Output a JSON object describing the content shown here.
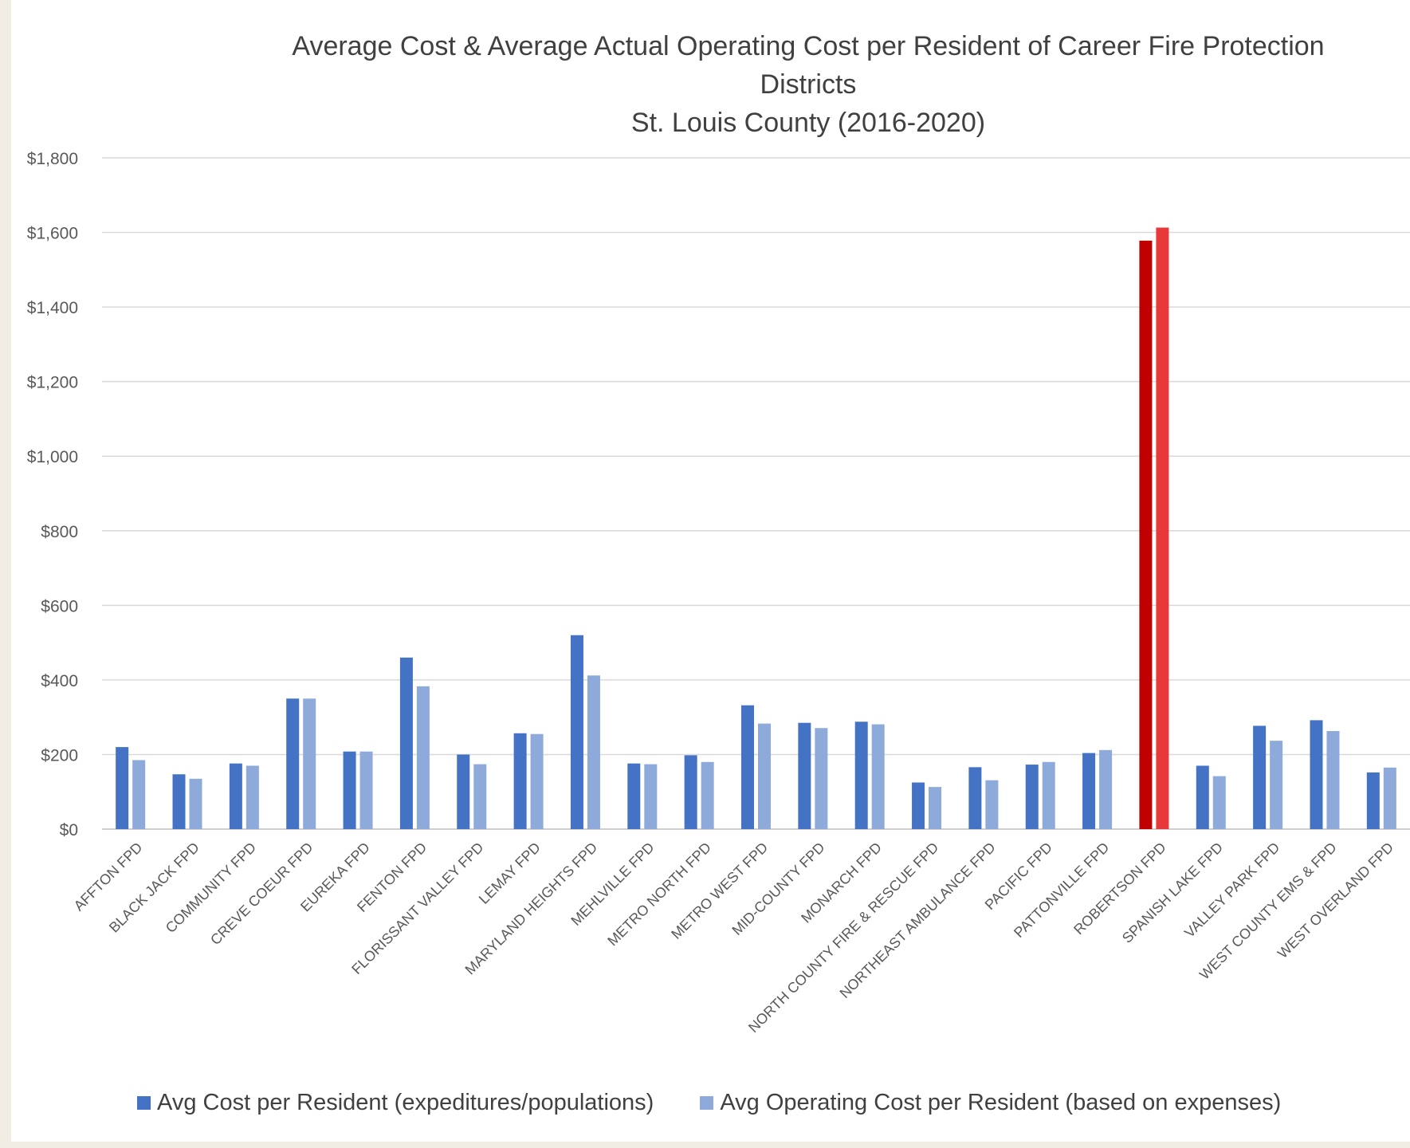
{
  "chart_data": {
    "type": "bar",
    "title_lines": [
      "Average Cost & Average Actual Operating Cost per Resident of Career Fire Protection",
      "Districts",
      "St. Louis County (2016-2020)"
    ],
    "xlabel": "",
    "ylabel": "",
    "ylim": [
      0,
      1800
    ],
    "yticks": [
      0,
      200,
      400,
      600,
      800,
      1000,
      1200,
      1400,
      1600,
      1800
    ],
    "ytick_labels": [
      "$0",
      "$200",
      "$400",
      "$600",
      "$800",
      "$1,000",
      "$1,200",
      "$1,400",
      "$1,600",
      "$1,800"
    ],
    "grid": true,
    "legend_position": "bottom",
    "categories": [
      "AFFTON FPD",
      "BLACK JACK FPD",
      "COMMUNITY FPD",
      "CREVE COEUR FPD",
      "EUREKA FPD",
      "FENTON FPD",
      "FLORISSANT VALLEY FPD",
      "LEMAY FPD",
      "MARYLAND HEIGHTS FPD",
      "MEHLVILLE FPD",
      "METRO NORTH FPD",
      "METRO WEST FPD",
      "MID-COUNTY FPD",
      "MONARCH FPD",
      "NORTH COUNTY FIRE & RESCUE FPD",
      "NORTHEAST AMBULANCE FPD",
      "PACIFIC FPD",
      "PATTONVILLE FPD",
      "ROBERTSON FPD",
      "SPANISH LAKE FPD",
      "VALLEY PARK FPD",
      "WEST COUNTY EMS & FPD",
      "WEST OVERLAND FPD"
    ],
    "series": [
      {
        "name": "Avg Cost per Resident (expeditures/populations)",
        "color": "#4472c4",
        "values": [
          220,
          147,
          176,
          350,
          208,
          460,
          200,
          257,
          520,
          176,
          198,
          332,
          285,
          288,
          125,
          166,
          173,
          204,
          1578,
          170,
          277,
          292,
          152
        ]
      },
      {
        "name": "Avg Operating Cost per Resident (based on expenses)",
        "color": "#8eaadb",
        "values": [
          185,
          135,
          170,
          350,
          208,
          383,
          174,
          255,
          412,
          174,
          180,
          283,
          271,
          281,
          113,
          131,
          180,
          212,
          1613,
          142,
          237,
          263,
          165
        ]
      }
    ],
    "highlight": {
      "category": "ROBERTSON FPD",
      "colors": [
        "#c00000",
        "#e8393a"
      ]
    }
  }
}
